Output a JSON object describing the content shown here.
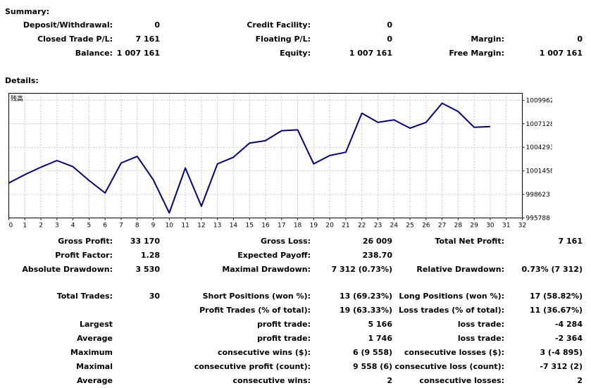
{
  "summary": {
    "heading": "Summary:",
    "rows": [
      [
        {
          "label": "Deposit/Withdrawal:",
          "value": "0"
        },
        {
          "label": "Credit Facility:",
          "value": "0"
        },
        {
          "label": "",
          "value": ""
        }
      ],
      [
        {
          "label": "Closed Trade P/L:",
          "value": "7 161"
        },
        {
          "label": "Floating P/L:",
          "value": "0"
        },
        {
          "label": "Margin:",
          "value": "0"
        }
      ],
      [
        {
          "label": "Balance:",
          "value": "1 007 161"
        },
        {
          "label": "Equity:",
          "value": "1 007 161"
        },
        {
          "label": "Free Margin:",
          "value": "1 007 161"
        }
      ]
    ]
  },
  "details": {
    "heading": "Details:",
    "rows": [
      [
        {
          "label": "Gross Profit:",
          "value": "33 170"
        },
        {
          "label": "Gross Loss:",
          "value": "26 009"
        },
        {
          "label": "Total Net Profit:",
          "value": "7 161"
        }
      ],
      [
        {
          "label": "Profit Factor:",
          "value": "1.28"
        },
        {
          "label": "Expected Payoff:",
          "value": "238.70"
        },
        {
          "label": "",
          "value": ""
        }
      ],
      [
        {
          "label": "Absolute Drawdown:",
          "value": "3 530"
        },
        {
          "label": "Maximal Drawdown:",
          "value": "7 312 (0.73%)"
        },
        {
          "label": "Relative Drawdown:",
          "value": "0.73% (7 312)"
        }
      ],
      [
        {
          "label": "Total Trades:",
          "value": "30"
        },
        {
          "label": "Short Positions (won %):",
          "value": "13 (69.23%)"
        },
        {
          "label": "Long Positions (won %):",
          "value": "17 (58.82%)"
        }
      ],
      [
        {
          "label": "",
          "value": ""
        },
        {
          "label": "Profit Trades (% of total):",
          "value": "19 (63.33%)"
        },
        {
          "label": "Loss trades (% of total):",
          "value": "11 (36.67%)"
        }
      ],
      [
        {
          "label": "Largest",
          "value": ""
        },
        {
          "label": "profit trade:",
          "value": "5 166"
        },
        {
          "label": "loss trade:",
          "value": "-4 284"
        }
      ],
      [
        {
          "label": "Average",
          "value": ""
        },
        {
          "label": "profit trade:",
          "value": "1 746"
        },
        {
          "label": "loss trade:",
          "value": "-2 364"
        }
      ],
      [
        {
          "label": "Maximum",
          "value": ""
        },
        {
          "label": "consecutive wins ($):",
          "value": "6 (9 558)"
        },
        {
          "label": "consecutive losses ($):",
          "value": "3 (-4 895)"
        }
      ],
      [
        {
          "label": "Maximal",
          "value": ""
        },
        {
          "label": "consecutive profit (count):",
          "value": "9 558 (6)"
        },
        {
          "label": "consecutive loss (count):",
          "value": "-7 312 (2)"
        }
      ],
      [
        {
          "label": "Average",
          "value": ""
        },
        {
          "label": "consecutive wins:",
          "value": "2"
        },
        {
          "label": "consecutive losses:",
          "value": "2"
        }
      ]
    ]
  },
  "chart_data": {
    "type": "line",
    "title": "残高",
    "line_color": "#00008b",
    "grid": true,
    "grid_style": "dashed",
    "xlim": [
      0,
      32
    ],
    "ylim": [
      995788,
      1010800
    ],
    "x_ticks": [
      "0",
      "1",
      "2",
      "3",
      "4",
      "5",
      "6",
      "7",
      "8",
      "9",
      "10",
      "11",
      "12",
      "13",
      "14",
      "15",
      "16",
      "17",
      "18",
      "19",
      "20",
      "21",
      "22",
      "23",
      "24",
      "25",
      "26",
      "27",
      "28",
      "29",
      "30",
      "31",
      "32"
    ],
    "y_ticks": [
      "1009962",
      "1007128",
      "1004293",
      "1001458",
      "998623",
      "995788"
    ],
    "series": [
      {
        "x": [
          0,
          1,
          2,
          3,
          4,
          5,
          6,
          7,
          8,
          9,
          10,
          11,
          12,
          13,
          14,
          15,
          16,
          17,
          18,
          19,
          20,
          21,
          22,
          23,
          24,
          25,
          26,
          27,
          28,
          29,
          30
        ],
        "y": [
          1000000,
          1001000,
          1001900,
          1002700,
          1001960,
          1000300,
          998800,
          1002400,
          1003200,
          1000400,
          996400,
          1001800,
          997200,
          1002300,
          1003100,
          1004800,
          1005100,
          1006300,
          1006400,
          1002300,
          1003300,
          1003700,
          1008400,
          1007300,
          1007600,
          1006600,
          1007300,
          1009600,
          1008600,
          1006700,
          1006800
        ]
      }
    ]
  }
}
